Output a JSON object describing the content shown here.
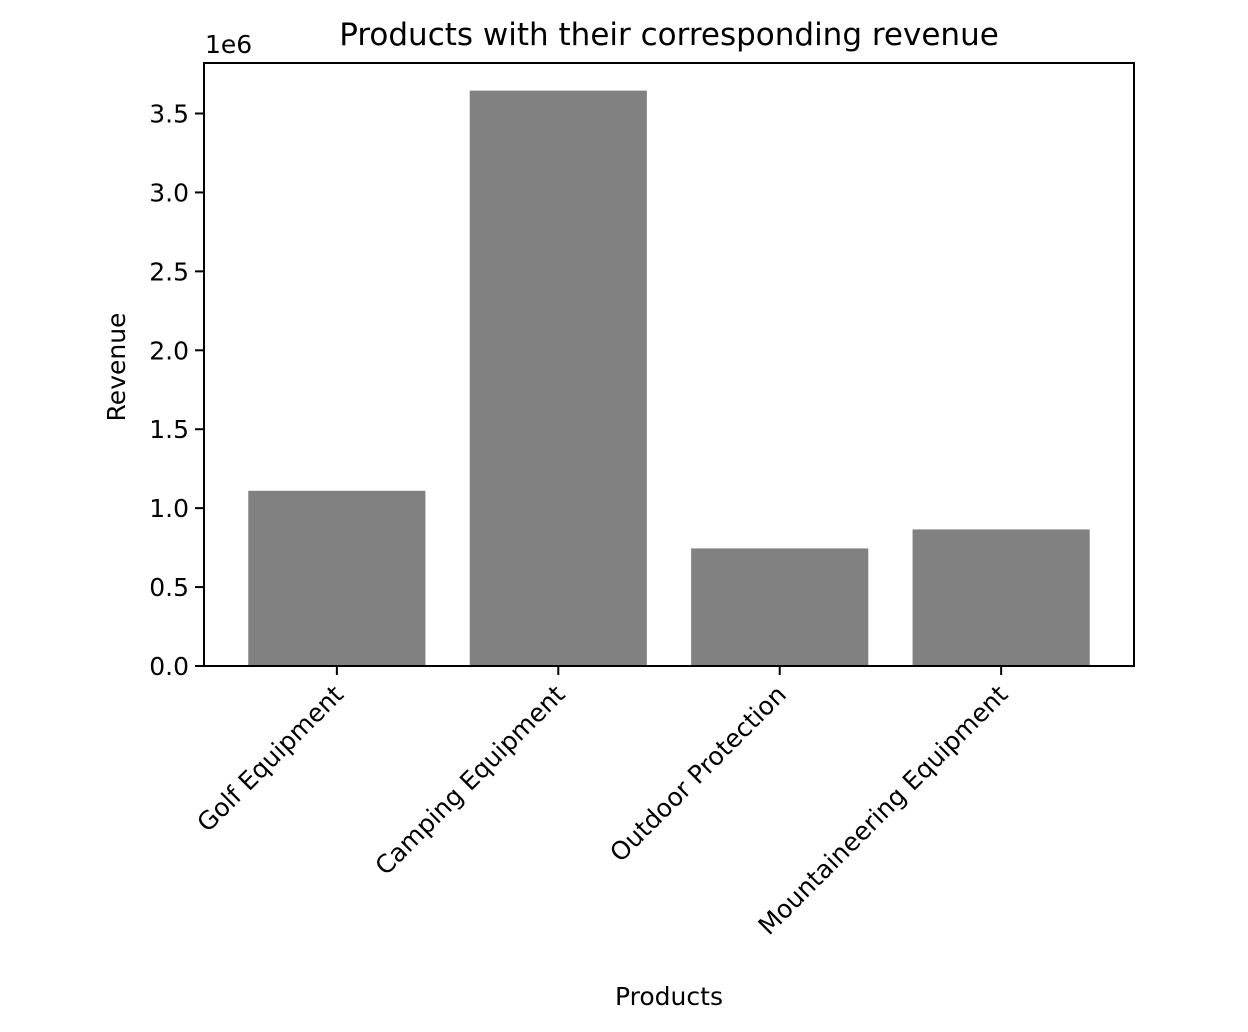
{
  "chart_data": {
    "type": "bar",
    "title": "Products with their corresponding revenue",
    "xlabel": "Products",
    "ylabel": "Revenue",
    "y_offset_label": "1e6",
    "y_scale_factor": 1000000,
    "categories": [
      "Golf Equipment",
      "Camping Equipment",
      "Outdoor Protection",
      "Mountaineering Equipment"
    ],
    "values": [
      1110000,
      3645000,
      745000,
      865000
    ],
    "ylim": [
      0,
      3820000
    ],
    "yticks": [
      0,
      500000,
      1000000,
      1500000,
      2000000,
      2500000,
      3000000,
      3500000
    ],
    "ytick_labels": [
      "0.0",
      "0.5",
      "1.0",
      "1.5",
      "2.0",
      "2.5",
      "3.0",
      "3.5"
    ],
    "bar_color": "#808180",
    "grid": false,
    "legend": "none",
    "xtick_rotation": "45 degrees"
  }
}
